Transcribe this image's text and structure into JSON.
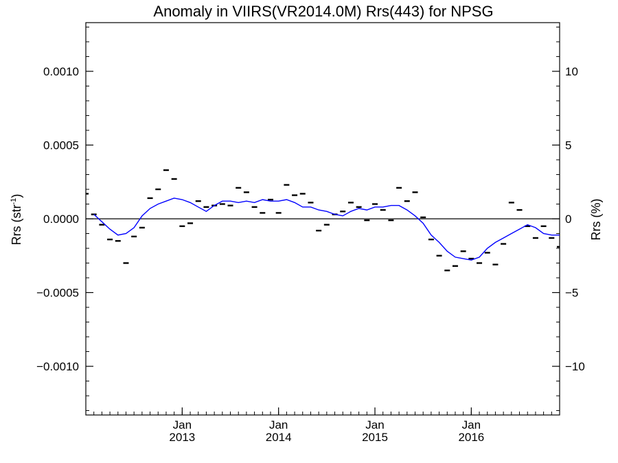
{
  "chart_data": {
    "type": "line",
    "title": "Anomaly in VIIRS(VR2014.0M) Rrs(443) for NPSG",
    "ylabel_left": "Rrs (str",
    "ylabel_left_sup": "-1",
    "ylabel_left_close": ")",
    "ylabel_right": "Rrs (%)",
    "ylim_left": [
      -0.00133,
      0.00133
    ],
    "ylim_right": [
      -13.3,
      13.3
    ],
    "yticks_left": [
      {
        "value": 0.001,
        "label": "0.0010"
      },
      {
        "value": 0.0005,
        "label": "0.0005"
      },
      {
        "value": 0.0,
        "label": "0.0000"
      },
      {
        "value": -0.0005,
        "label": "−0.0005"
      },
      {
        "value": -0.001,
        "label": "−0.0010"
      }
    ],
    "yticks_right": [
      {
        "value": 10,
        "label": "10"
      },
      {
        "value": 5,
        "label": "5"
      },
      {
        "value": 0,
        "label": "0"
      },
      {
        "value": -5,
        "label": "−5"
      },
      {
        "value": -10,
        "label": "−10"
      }
    ],
    "xlim": [
      "2012-01",
      "2016-12"
    ],
    "xticks": [
      {
        "date": "2013-01",
        "month": "Jan",
        "year": "2013"
      },
      {
        "date": "2014-01",
        "month": "Jan",
        "year": "2014"
      },
      {
        "date": "2015-01",
        "month": "Jan",
        "year": "2015"
      },
      {
        "date": "2016-01",
        "month": "Jan",
        "year": "2016"
      }
    ],
    "zero_line": true,
    "series": [
      {
        "style": "dash-markers",
        "color": "#000000",
        "points": [
          [
            "2012-01",
            0.00017
          ],
          [
            "2012-02",
            3e-05
          ],
          [
            "2012-03",
            -4e-05
          ],
          [
            "2012-04",
            -0.00014
          ],
          [
            "2012-05",
            -0.00015
          ],
          [
            "2012-06",
            -0.0003
          ],
          [
            "2012-07",
            -0.00012
          ],
          [
            "2012-08",
            -6e-05
          ],
          [
            "2012-09",
            0.00014
          ],
          [
            "2012-10",
            0.0002
          ],
          [
            "2012-11",
            0.00033
          ],
          [
            "2012-12",
            0.00027
          ],
          [
            "2013-01",
            -5e-05
          ],
          [
            "2013-02",
            -3e-05
          ],
          [
            "2013-03",
            0.00012
          ],
          [
            "2013-04",
            8e-05
          ],
          [
            "2013-05",
            9e-05
          ],
          [
            "2013-06",
            0.0001
          ],
          [
            "2013-07",
            9e-05
          ],
          [
            "2013-08",
            0.00021
          ],
          [
            "2013-09",
            0.00018
          ],
          [
            "2013-10",
            8e-05
          ],
          [
            "2013-11",
            4e-05
          ],
          [
            "2013-12",
            0.00013
          ],
          [
            "2014-01",
            4e-05
          ],
          [
            "2014-02",
            0.00023
          ],
          [
            "2014-03",
            0.00016
          ],
          [
            "2014-04",
            0.00017
          ],
          [
            "2014-05",
            0.00011
          ],
          [
            "2014-06",
            -8e-05
          ],
          [
            "2014-07",
            -4e-05
          ],
          [
            "2014-08",
            3e-05
          ],
          [
            "2014-09",
            5e-05
          ],
          [
            "2014-10",
            0.00011
          ],
          [
            "2014-11",
            8e-05
          ],
          [
            "2014-12",
            -1e-05
          ],
          [
            "2015-01",
            0.0001
          ],
          [
            "2015-02",
            6e-05
          ],
          [
            "2015-03",
            -1e-05
          ],
          [
            "2015-04",
            0.00021
          ],
          [
            "2015-05",
            0.00012
          ],
          [
            "2015-06",
            0.00018
          ],
          [
            "2015-07",
            1e-05
          ],
          [
            "2015-08",
            -0.00014
          ],
          [
            "2015-09",
            -0.00025
          ],
          [
            "2015-10",
            -0.00035
          ],
          [
            "2015-11",
            -0.00032
          ],
          [
            "2015-12",
            -0.00022
          ],
          [
            "2016-01",
            -0.00027
          ],
          [
            "2016-02",
            -0.0003
          ],
          [
            "2016-03",
            -0.00023
          ],
          [
            "2016-04",
            -0.00031
          ],
          [
            "2016-05",
            -0.00017
          ],
          [
            "2016-06",
            0.00011
          ],
          [
            "2016-07",
            6e-05
          ],
          [
            "2016-08",
            -5e-05
          ],
          [
            "2016-09",
            -0.00013
          ],
          [
            "2016-10",
            -5e-05
          ],
          [
            "2016-11",
            -0.00013
          ],
          [
            "2016-12",
            -0.00019
          ]
        ]
      },
      {
        "style": "line",
        "color": "#0000ff",
        "points": [
          [
            "2012-02",
            3e-05
          ],
          [
            "2012-03",
            -2e-05
          ],
          [
            "2012-04",
            -7e-05
          ],
          [
            "2012-05",
            -0.00011
          ],
          [
            "2012-06",
            -0.0001
          ],
          [
            "2012-07",
            -6e-05
          ],
          [
            "2012-08",
            2e-05
          ],
          [
            "2012-09",
            7e-05
          ],
          [
            "2012-10",
            0.0001
          ],
          [
            "2012-11",
            0.00012
          ],
          [
            "2012-12",
            0.00014
          ],
          [
            "2013-01",
            0.00013
          ],
          [
            "2013-02",
            0.00011
          ],
          [
            "2013-03",
            8e-05
          ],
          [
            "2013-04",
            5e-05
          ],
          [
            "2013-05",
            9e-05
          ],
          [
            "2013-06",
            0.00012
          ],
          [
            "2013-07",
            0.00012
          ],
          [
            "2013-08",
            0.00011
          ],
          [
            "2013-09",
            0.00012
          ],
          [
            "2013-10",
            0.00011
          ],
          [
            "2013-11",
            0.00013
          ],
          [
            "2013-12",
            0.00012
          ],
          [
            "2014-01",
            0.00012
          ],
          [
            "2014-02",
            0.00013
          ],
          [
            "2014-03",
            0.00011
          ],
          [
            "2014-04",
            8e-05
          ],
          [
            "2014-05",
            8e-05
          ],
          [
            "2014-06",
            6e-05
          ],
          [
            "2014-07",
            5e-05
          ],
          [
            "2014-08",
            3e-05
          ],
          [
            "2014-09",
            2e-05
          ],
          [
            "2014-10",
            5e-05
          ],
          [
            "2014-11",
            7e-05
          ],
          [
            "2014-12",
            6e-05
          ],
          [
            "2015-01",
            8e-05
          ],
          [
            "2015-02",
            8e-05
          ],
          [
            "2015-03",
            9e-05
          ],
          [
            "2015-04",
            9e-05
          ],
          [
            "2015-05",
            6e-05
          ],
          [
            "2015-06",
            2e-05
          ],
          [
            "2015-07",
            -3e-05
          ],
          [
            "2015-08",
            -0.00011
          ],
          [
            "2015-09",
            -0.00016
          ],
          [
            "2015-10",
            -0.00022
          ],
          [
            "2015-11",
            -0.00026
          ],
          [
            "2015-12",
            -0.00027
          ],
          [
            "2016-01",
            -0.00028
          ],
          [
            "2016-02",
            -0.00026
          ],
          [
            "2016-03",
            -0.0002
          ],
          [
            "2016-04",
            -0.00016
          ],
          [
            "2016-05",
            -0.00013
          ],
          [
            "2016-06",
            -0.0001
          ],
          [
            "2016-07",
            -7e-05
          ],
          [
            "2016-08",
            -4e-05
          ],
          [
            "2016-09",
            -6e-05
          ],
          [
            "2016-10",
            -0.0001
          ],
          [
            "2016-11",
            -0.00011
          ],
          [
            "2016-12",
            -0.00011
          ]
        ]
      }
    ]
  }
}
